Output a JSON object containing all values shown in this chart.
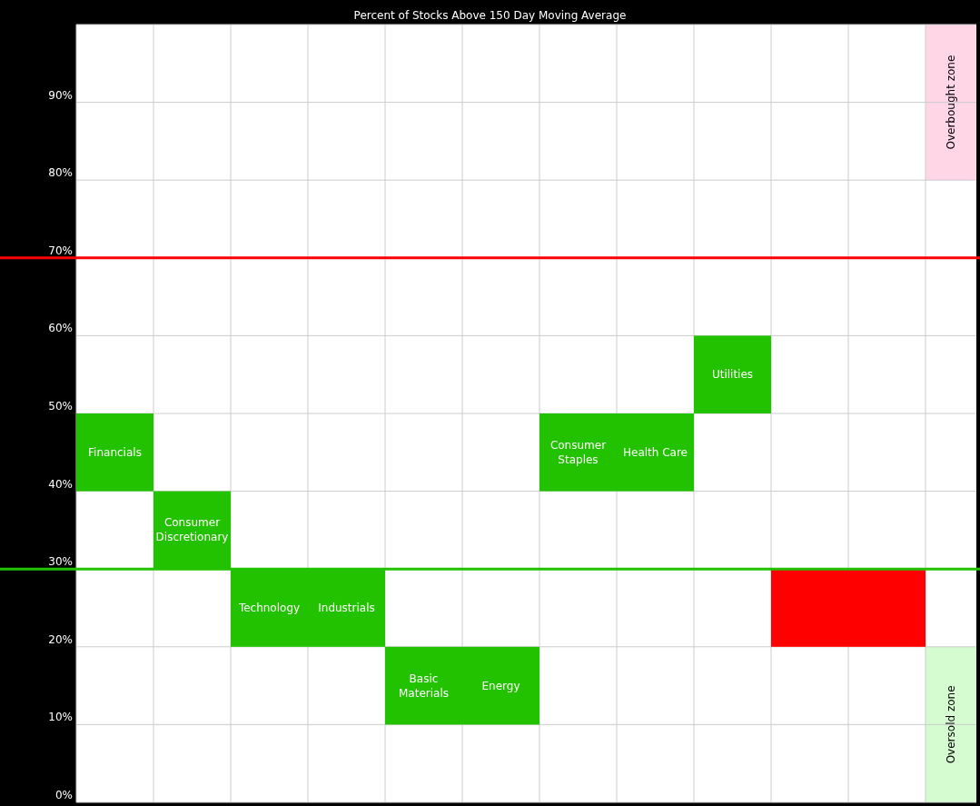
{
  "chart_data": {
    "type": "bar",
    "title": "Percent of Stocks Above 150 Day Moving Average",
    "categories": [
      "Financials",
      "Consumer Discretionary",
      "Technology",
      "Industrials",
      "Basic Materials",
      "Energy",
      "Consumer Staples",
      "Health Care",
      "Utilities",
      null,
      null
    ],
    "base": [
      40,
      30,
      20,
      20,
      10,
      10,
      40,
      40,
      50,
      20,
      20
    ],
    "values": [
      10,
      10,
      10,
      10,
      10,
      10,
      10,
      10,
      10,
      10,
      10
    ],
    "colors": [
      "#22c200",
      "#22c200",
      "#22c200",
      "#22c200",
      "#22c200",
      "#22c200",
      "#22c200",
      "#22c200",
      "#22c200",
      "#ff0000",
      "#ff0000"
    ],
    "ylim": [
      0,
      100
    ],
    "yticks": [
      {
        "value": 0,
        "label": "0%"
      },
      {
        "value": 10,
        "label": "10%"
      },
      {
        "value": 20,
        "label": "20%"
      },
      {
        "value": 30,
        "label": "30%"
      },
      {
        "value": 40,
        "label": "40%"
      },
      {
        "value": 50,
        "label": "50%"
      },
      {
        "value": 60,
        "label": "60%"
      },
      {
        "value": 70,
        "label": "70%"
      },
      {
        "value": 80,
        "label": "80%"
      },
      {
        "value": 90,
        "label": "90%"
      }
    ],
    "grid": true,
    "ref_lines": [
      {
        "axis": "y",
        "value": 70,
        "color": "#ff0000"
      },
      {
        "axis": "y",
        "value": 30,
        "color": "#22c200"
      }
    ],
    "bands": [
      {
        "axis": "y",
        "from": 80,
        "to": 100,
        "label": "Overbought zone",
        "color": "#ffd6e6"
      },
      {
        "axis": "y",
        "from": 0,
        "to": 20,
        "label": "Oversold zone",
        "color": "#d4fcd0"
      }
    ]
  }
}
